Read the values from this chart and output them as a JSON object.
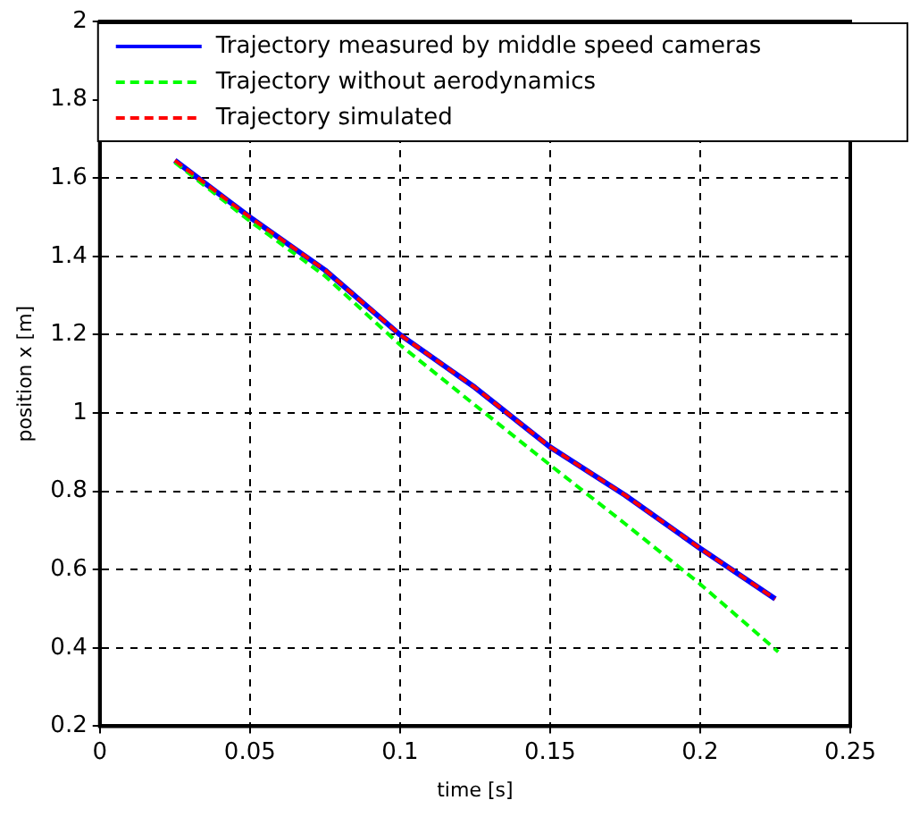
{
  "chart_data": {
    "type": "line",
    "xlabel": "time [s]",
    "ylabel": "position x [m]",
    "xlim": [
      0,
      0.25
    ],
    "xticks": [
      0,
      0.05,
      0.1,
      0.15,
      0.2,
      0.25
    ],
    "ylim": [
      0.2,
      2
    ],
    "yticks": [
      0.2,
      0.4,
      0.6,
      0.8,
      1,
      1.2,
      1.4,
      1.6,
      1.8,
      2
    ],
    "grid": true,
    "legend": "top",
    "marker": "none",
    "series": [
      {
        "name": "Trajectory measured by middle speed cameras",
        "color": "#0000ff",
        "line_style": "solid",
        "x": [
          0.025,
          0.05,
          0.075,
          0.1,
          0.125,
          0.15,
          0.175,
          0.2,
          0.225
        ],
        "values": [
          1.645,
          1.5,
          1.365,
          1.2,
          1.065,
          0.913,
          0.79,
          0.654,
          0.525
        ]
      },
      {
        "name": "Trajectory without aerodynamics",
        "color": "#00ff00",
        "line_style": "dashed",
        "x": [
          0.025,
          0.05,
          0.075,
          0.1,
          0.125,
          0.15,
          0.175,
          0.2,
          0.226
        ],
        "values": [
          1.64,
          1.49,
          1.35,
          1.174,
          1.02,
          0.867,
          0.717,
          0.563,
          0.39
        ]
      },
      {
        "name": "Trajectory simulated",
        "color": "#ff0000",
        "line_style": "dashed",
        "x": [
          0.025,
          0.05,
          0.075,
          0.1,
          0.125,
          0.15,
          0.175,
          0.2,
          0.225
        ],
        "values": [
          1.645,
          1.5,
          1.365,
          1.2,
          1.065,
          0.913,
          0.79,
          0.654,
          0.525
        ]
      }
    ]
  }
}
